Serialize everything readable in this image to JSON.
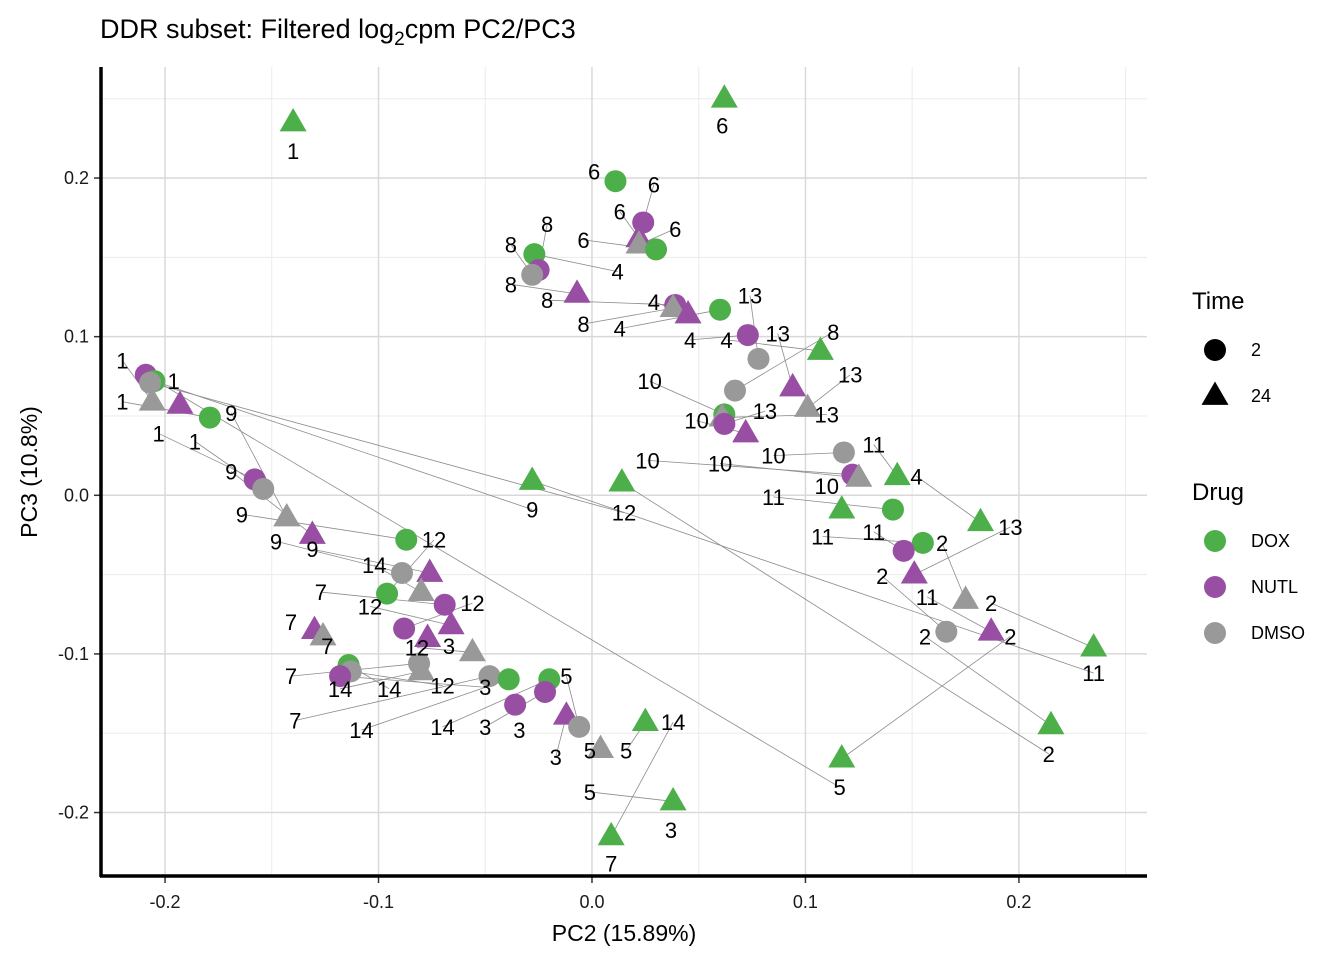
{
  "chart_data": {
    "type": "scatter",
    "title": "DDR subset: Filtered log2cpm PC2/PC3",
    "title_parts": {
      "pre": "DDR subset: Filtered log",
      "sub": "2",
      "post": "cpm PC2/PC3"
    },
    "xlabel": "PC2 (15.89%)",
    "ylabel": "PC3 (10.8%)",
    "xlim": [
      -0.23,
      0.26
    ],
    "ylim": [
      -0.24,
      0.27
    ],
    "xticks": [
      -0.2,
      -0.1,
      0.0,
      0.1,
      0.2
    ],
    "xtick_labels": [
      "-0.2",
      "-0.1",
      "0.0",
      "0.1",
      "0.2"
    ],
    "yticks": [
      -0.2,
      -0.1,
      0.0,
      0.1,
      0.2
    ],
    "ytick_labels": [
      "-0.2",
      "-0.1",
      "0.0",
      "0.1",
      "0.2"
    ],
    "grid": true,
    "legend_position": "right",
    "legend": {
      "time": {
        "title": "Time",
        "entries": [
          {
            "label": "2",
            "shape": "circle"
          },
          {
            "label": "24",
            "shape": "triangle"
          }
        ]
      },
      "drug": {
        "title": "Drug",
        "entries": [
          {
            "label": "DOX",
            "color": "#4DAF4A"
          },
          {
            "label": "NUTL",
            "color": "#984EA3"
          },
          {
            "label": "DMSO",
            "color": "#999999"
          }
        ]
      }
    },
    "colors": {
      "DOX": "#4DAF4A",
      "NUTL": "#984EA3",
      "DMSO": "#999999"
    },
    "points": [
      {
        "x": -0.14,
        "y": 0.235,
        "drug": "DOX",
        "time": "24",
        "label": "1"
      },
      {
        "x": 0.062,
        "y": 0.25,
        "drug": "DOX",
        "time": "24",
        "label": "6"
      },
      {
        "x": 0.011,
        "y": 0.198,
        "drug": "DOX",
        "time": "2",
        "label": "6"
      },
      {
        "x": 0.024,
        "y": 0.172,
        "drug": "NUTL",
        "time": "2",
        "label": "6"
      },
      {
        "x": 0.022,
        "y": 0.162,
        "drug": "NUTL",
        "time": "24",
        "label": "6"
      },
      {
        "x": 0.022,
        "y": 0.158,
        "drug": "DMSO",
        "time": "24",
        "label": "4"
      },
      {
        "x": 0.03,
        "y": 0.155,
        "drug": "DOX",
        "time": "2",
        "label": "6"
      },
      {
        "x": -0.027,
        "y": 0.152,
        "drug": "DOX",
        "time": "2",
        "label": "8"
      },
      {
        "x": -0.025,
        "y": 0.142,
        "drug": "NUTL",
        "time": "2",
        "label": "8"
      },
      {
        "x": -0.028,
        "y": 0.139,
        "drug": "DMSO",
        "time": "2",
        "label": "8"
      },
      {
        "x": -0.007,
        "y": 0.127,
        "drug": "NUTL",
        "time": "24",
        "label": "8"
      },
      {
        "x": 0.039,
        "y": 0.12,
        "drug": "NUTL",
        "time": "2",
        "label": "4"
      },
      {
        "x": 0.038,
        "y": 0.118,
        "drug": "DMSO",
        "time": "24",
        "label": "4"
      },
      {
        "x": 0.045,
        "y": 0.114,
        "drug": "NUTL",
        "time": "24",
        "label": "4"
      },
      {
        "x": 0.06,
        "y": 0.117,
        "drug": "DOX",
        "time": "2",
        "label": "13"
      },
      {
        "x": 0.073,
        "y": 0.101,
        "drug": "NUTL",
        "time": "2",
        "label": "13"
      },
      {
        "x": 0.107,
        "y": 0.091,
        "drug": "DOX",
        "time": "24",
        "label": "8"
      },
      {
        "x": 0.078,
        "y": 0.086,
        "drug": "DMSO",
        "time": "2",
        "label": "13"
      },
      {
        "x": 0.094,
        "y": 0.068,
        "drug": "NUTL",
        "time": "24",
        "label": "13"
      },
      {
        "x": 0.067,
        "y": 0.066,
        "drug": "DMSO",
        "time": "2",
        "label": "10"
      },
      {
        "x": 0.101,
        "y": 0.055,
        "drug": "DMSO",
        "time": "24",
        "label": "13"
      },
      {
        "x": 0.062,
        "y": 0.051,
        "drug": "DOX",
        "time": "2",
        "label": "10"
      },
      {
        "x": 0.061,
        "y": 0.049,
        "drug": "DMSO",
        "time": "24",
        "label": "10"
      },
      {
        "x": 0.062,
        "y": 0.045,
        "drug": "NUTL",
        "time": "2",
        "label": "10"
      },
      {
        "x": 0.072,
        "y": 0.039,
        "drug": "NUTL",
        "time": "24",
        "label": "10"
      },
      {
        "x": 0.118,
        "y": 0.027,
        "drug": "DMSO",
        "time": "2",
        "label": "11"
      },
      {
        "x": 0.122,
        "y": 0.013,
        "drug": "NUTL",
        "time": "2",
        "label": "11"
      },
      {
        "x": 0.125,
        "y": 0.011,
        "drug": "DMSO",
        "time": "24",
        "label": "10"
      },
      {
        "x": 0.143,
        "y": 0.012,
        "drug": "DOX",
        "time": "24",
        "label": "4"
      },
      {
        "x": 0.117,
        "y": -0.009,
        "drug": "DOX",
        "time": "24",
        "label": "11"
      },
      {
        "x": 0.141,
        "y": -0.009,
        "drug": "DOX",
        "time": "2",
        "label": "11"
      },
      {
        "x": 0.182,
        "y": -0.017,
        "drug": "DOX",
        "time": "24",
        "label": "13"
      },
      {
        "x": 0.155,
        "y": -0.03,
        "drug": "DOX",
        "time": "2",
        "label": "2"
      },
      {
        "x": 0.146,
        "y": -0.035,
        "drug": "NUTL",
        "time": "2",
        "label": "2"
      },
      {
        "x": 0.151,
        "y": -0.05,
        "drug": "NUTL",
        "time": "24",
        "label": "11"
      },
      {
        "x": 0.175,
        "y": -0.066,
        "drug": "DMSO",
        "time": "24",
        "label": "2"
      },
      {
        "x": 0.166,
        "y": -0.086,
        "drug": "DMSO",
        "time": "2",
        "label": "2"
      },
      {
        "x": 0.187,
        "y": -0.086,
        "drug": "NUTL",
        "time": "24",
        "label": "2"
      },
      {
        "x": 0.235,
        "y": -0.096,
        "drug": "DOX",
        "time": "24",
        "label": "11"
      },
      {
        "x": 0.215,
        "y": -0.145,
        "drug": "DOX",
        "time": "24",
        "label": "2"
      },
      {
        "x": 0.117,
        "y": -0.166,
        "drug": "DOX",
        "time": "24",
        "label": "5"
      },
      {
        "x": -0.028,
        "y": 0.009,
        "drug": "DOX",
        "time": "24",
        "label": "9"
      },
      {
        "x": 0.014,
        "y": 0.008,
        "drug": "DOX",
        "time": "24",
        "label": "12"
      },
      {
        "x": -0.209,
        "y": 0.076,
        "drug": "NUTL",
        "time": "2",
        "label": "1"
      },
      {
        "x": -0.205,
        "y": 0.072,
        "drug": "DOX",
        "time": "2",
        "label": "1"
      },
      {
        "x": -0.207,
        "y": 0.071,
        "drug": "DMSO",
        "time": "2",
        "label": "1"
      },
      {
        "x": -0.206,
        "y": 0.059,
        "drug": "DMSO",
        "time": "24",
        "label": "1"
      },
      {
        "x": -0.193,
        "y": 0.057,
        "drug": "NUTL",
        "time": "24",
        "label": "1"
      },
      {
        "x": -0.179,
        "y": 0.049,
        "drug": "DOX",
        "time": "2",
        "label": "9"
      },
      {
        "x": -0.158,
        "y": 0.01,
        "drug": "NUTL",
        "time": "2",
        "label": "9"
      },
      {
        "x": -0.154,
        "y": 0.004,
        "drug": "DMSO",
        "time": "2",
        "label": "9"
      },
      {
        "x": -0.143,
        "y": -0.014,
        "drug": "DMSO",
        "time": "24",
        "label": "9"
      },
      {
        "x": -0.131,
        "y": -0.025,
        "drug": "NUTL",
        "time": "24",
        "label": "9"
      },
      {
        "x": -0.087,
        "y": -0.028,
        "drug": "DOX",
        "time": "2",
        "label": "12"
      },
      {
        "x": -0.089,
        "y": -0.049,
        "drug": "DMSO",
        "time": "2",
        "label": "14"
      },
      {
        "x": -0.076,
        "y": -0.049,
        "drug": "NUTL",
        "time": "24",
        "label": "12"
      },
      {
        "x": -0.096,
        "y": -0.062,
        "drug": "DOX",
        "time": "2",
        "label": "12"
      },
      {
        "x": -0.08,
        "y": -0.061,
        "drug": "DMSO",
        "time": "24",
        "label": "12"
      },
      {
        "x": -0.069,
        "y": -0.069,
        "drug": "NUTL",
        "time": "2",
        "label": "12"
      },
      {
        "x": -0.066,
        "y": -0.082,
        "drug": "NUTL",
        "time": "24",
        "label": "12"
      },
      {
        "x": -0.088,
        "y": -0.084,
        "drug": "NUTL",
        "time": "2",
        "label": "14"
      },
      {
        "x": -0.13,
        "y": -0.085,
        "drug": "NUTL",
        "time": "24",
        "label": "7"
      },
      {
        "x": -0.126,
        "y": -0.089,
        "drug": "DMSO",
        "time": "24",
        "label": "7"
      },
      {
        "x": -0.077,
        "y": -0.09,
        "drug": "NUTL",
        "time": "24",
        "label": "3"
      },
      {
        "x": -0.056,
        "y": -0.099,
        "drug": "DMSO",
        "time": "24",
        "label": "3"
      },
      {
        "x": -0.081,
        "y": -0.106,
        "drug": "DMSO",
        "time": "2",
        "label": "14"
      },
      {
        "x": -0.08,
        "y": -0.111,
        "drug": "DMSO",
        "time": "24",
        "label": "14"
      },
      {
        "x": -0.114,
        "y": -0.107,
        "drug": "DOX",
        "time": "2",
        "label": "7"
      },
      {
        "x": -0.113,
        "y": -0.111,
        "drug": "DMSO",
        "time": "2",
        "label": "14"
      },
      {
        "x": -0.118,
        "y": -0.114,
        "drug": "NUTL",
        "time": "2",
        "label": "14"
      },
      {
        "x": -0.048,
        "y": -0.114,
        "drug": "DMSO",
        "time": "2",
        "label": "3"
      },
      {
        "x": -0.039,
        "y": -0.116,
        "drug": "DOX",
        "time": "2",
        "label": "5"
      },
      {
        "x": -0.02,
        "y": -0.116,
        "drug": "DOX",
        "time": "2",
        "label": "5"
      },
      {
        "x": -0.022,
        "y": -0.124,
        "drug": "NUTL",
        "time": "2",
        "label": "3"
      },
      {
        "x": -0.036,
        "y": -0.132,
        "drug": "NUTL",
        "time": "2",
        "label": "3"
      },
      {
        "x": -0.012,
        "y": -0.139,
        "drug": "NUTL",
        "time": "24",
        "label": "5"
      },
      {
        "x": -0.006,
        "y": -0.146,
        "drug": "DMSO",
        "time": "2",
        "label": "5"
      },
      {
        "x": 0.004,
        "y": -0.16,
        "drug": "DMSO",
        "time": "24",
        "label": "5"
      },
      {
        "x": 0.025,
        "y": -0.143,
        "drug": "DOX",
        "time": "24",
        "label": "14"
      },
      {
        "x": 0.038,
        "y": -0.193,
        "drug": "DOX",
        "time": "24",
        "label": "3"
      },
      {
        "x": 0.009,
        "y": -0.215,
        "drug": "DOX",
        "time": "24",
        "label": "7"
      }
    ],
    "labels": [
      {
        "x": -0.14,
        "y": 0.217,
        "text": "1"
      },
      {
        "x": 0.061,
        "y": 0.233,
        "text": "6"
      },
      {
        "x": 0.001,
        "y": 0.204,
        "text": "6"
      },
      {
        "x": 0.029,
        "y": 0.196,
        "text": "6"
      },
      {
        "x": 0.013,
        "y": 0.179,
        "text": "6"
      },
      {
        "x": 0.039,
        "y": 0.168,
        "text": "6"
      },
      {
        "x": -0.004,
        "y": 0.161,
        "text": "6"
      },
      {
        "x": 0.012,
        "y": 0.141,
        "text": "4"
      },
      {
        "x": -0.021,
        "y": 0.171,
        "text": "8"
      },
      {
        "x": -0.038,
        "y": 0.158,
        "text": "8"
      },
      {
        "x": -0.038,
        "y": 0.133,
        "text": "8"
      },
      {
        "x": -0.021,
        "y": 0.123,
        "text": "8"
      },
      {
        "x": -0.004,
        "y": 0.108,
        "text": "8"
      },
      {
        "x": 0.029,
        "y": 0.122,
        "text": "4"
      },
      {
        "x": 0.013,
        "y": 0.105,
        "text": "4"
      },
      {
        "x": 0.046,
        "y": 0.098,
        "text": "4"
      },
      {
        "x": 0.063,
        "y": 0.098,
        "text": "4"
      },
      {
        "x": 0.074,
        "y": 0.126,
        "text": "13"
      },
      {
        "x": 0.087,
        "y": 0.102,
        "text": "13"
      },
      {
        "x": 0.113,
        "y": 0.103,
        "text": "8"
      },
      {
        "x": 0.121,
        "y": 0.076,
        "text": "13"
      },
      {
        "x": 0.027,
        "y": 0.072,
        "text": "10"
      },
      {
        "x": 0.11,
        "y": 0.051,
        "text": "13"
      },
      {
        "x": 0.081,
        "y": 0.053,
        "text": "13"
      },
      {
        "x": 0.049,
        "y": 0.047,
        "text": "10"
      },
      {
        "x": 0.085,
        "y": 0.025,
        "text": "10"
      },
      {
        "x": 0.026,
        "y": 0.022,
        "text": "10"
      },
      {
        "x": 0.06,
        "y": 0.02,
        "text": "10"
      },
      {
        "x": 0.132,
        "y": 0.032,
        "text": "11"
      },
      {
        "x": 0.11,
        "y": 0.006,
        "text": "10"
      },
      {
        "x": 0.085,
        "y": -0.001,
        "text": "11"
      },
      {
        "x": 0.152,
        "y": 0.012,
        "text": "4"
      },
      {
        "x": 0.108,
        "y": -0.026,
        "text": "11"
      },
      {
        "x": 0.132,
        "y": -0.023,
        "text": "11"
      },
      {
        "x": 0.196,
        "y": -0.02,
        "text": "13"
      },
      {
        "x": 0.164,
        "y": -0.03,
        "text": "2"
      },
      {
        "x": 0.136,
        "y": -0.051,
        "text": "2"
      },
      {
        "x": 0.157,
        "y": -0.064,
        "text": "11"
      },
      {
        "x": 0.187,
        "y": -0.068,
        "text": "2"
      },
      {
        "x": 0.156,
        "y": -0.089,
        "text": "2"
      },
      {
        "x": 0.196,
        "y": -0.089,
        "text": "2"
      },
      {
        "x": 0.235,
        "y": -0.112,
        "text": "11"
      },
      {
        "x": 0.214,
        "y": -0.163,
        "text": "2"
      },
      {
        "x": 0.116,
        "y": -0.184,
        "text": "5"
      },
      {
        "x": -0.028,
        "y": -0.009,
        "text": "9"
      },
      {
        "x": 0.015,
        "y": -0.011,
        "text": "12"
      },
      {
        "x": -0.22,
        "y": 0.085,
        "text": "1"
      },
      {
        "x": -0.196,
        "y": 0.072,
        "text": "1"
      },
      {
        "x": -0.22,
        "y": 0.059,
        "text": "1"
      },
      {
        "x": -0.203,
        "y": 0.039,
        "text": "1"
      },
      {
        "x": -0.186,
        "y": 0.034,
        "text": "1"
      },
      {
        "x": -0.169,
        "y": 0.052,
        "text": "9"
      },
      {
        "x": -0.169,
        "y": 0.015,
        "text": "9"
      },
      {
        "x": -0.164,
        "y": -0.012,
        "text": "9"
      },
      {
        "x": -0.148,
        "y": -0.029,
        "text": "9"
      },
      {
        "x": -0.131,
        "y": -0.034,
        "text": "9"
      },
      {
        "x": -0.074,
        "y": -0.028,
        "text": "12"
      },
      {
        "x": -0.102,
        "y": -0.044,
        "text": "14"
      },
      {
        "x": -0.127,
        "y": -0.061,
        "text": "7"
      },
      {
        "x": -0.104,
        "y": -0.07,
        "text": "12"
      },
      {
        "x": -0.056,
        "y": -0.068,
        "text": "12"
      },
      {
        "x": -0.141,
        "y": -0.08,
        "text": "7"
      },
      {
        "x": -0.124,
        "y": -0.095,
        "text": "7"
      },
      {
        "x": -0.067,
        "y": -0.095,
        "text": "3"
      },
      {
        "x": -0.082,
        "y": -0.096,
        "text": "12"
      },
      {
        "x": -0.141,
        "y": -0.114,
        "text": "7"
      },
      {
        "x": -0.118,
        "y": -0.122,
        "text": "14"
      },
      {
        "x": -0.095,
        "y": -0.122,
        "text": "14"
      },
      {
        "x": -0.07,
        "y": -0.12,
        "text": "12"
      },
      {
        "x": -0.05,
        "y": -0.121,
        "text": "3"
      },
      {
        "x": -0.139,
        "y": -0.142,
        "text": "7"
      },
      {
        "x": -0.108,
        "y": -0.148,
        "text": "14"
      },
      {
        "x": -0.07,
        "y": -0.146,
        "text": "14"
      },
      {
        "x": -0.05,
        "y": -0.146,
        "text": "3"
      },
      {
        "x": -0.034,
        "y": -0.148,
        "text": "3"
      },
      {
        "x": -0.017,
        "y": -0.165,
        "text": "3"
      },
      {
        "x": -0.012,
        "y": -0.114,
        "text": "5"
      },
      {
        "x": -0.001,
        "y": -0.161,
        "text": "5"
      },
      {
        "x": 0.016,
        "y": -0.161,
        "text": "5"
      },
      {
        "x": -0.001,
        "y": -0.187,
        "text": "5"
      },
      {
        "x": 0.038,
        "y": -0.143,
        "text": "14"
      },
      {
        "x": 0.037,
        "y": -0.211,
        "text": "3"
      },
      {
        "x": 0.009,
        "y": -0.232,
        "text": "7"
      }
    ]
  }
}
